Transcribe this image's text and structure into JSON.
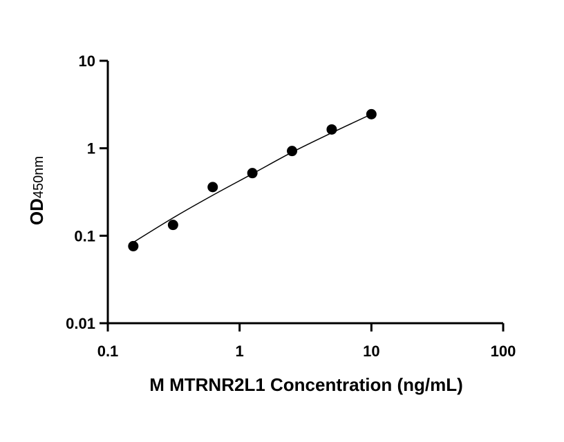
{
  "chart_data": {
    "type": "scatter",
    "title": "",
    "xlabel": "M MTRNR2L1 Concentration (ng/mL)",
    "ylabel": {
      "main": "OD",
      "subscript": "450nm"
    },
    "x_scale": "log",
    "y_scale": "log",
    "xlim": [
      0.1,
      100
    ],
    "ylim": [
      0.01,
      10
    ],
    "x_ticks": [
      0.1,
      1,
      10,
      100
    ],
    "x_tick_labels": [
      "0.1",
      "1",
      "10",
      "100"
    ],
    "y_ticks": [
      0.01,
      0.1,
      1,
      10
    ],
    "y_tick_labels": [
      "0.01",
      "0.1",
      "1",
      "10"
    ],
    "grid": false,
    "series": [
      {
        "x": [
          0.156,
          0.3125,
          0.625,
          1.25,
          2.5,
          5,
          10
        ],
        "y": [
          0.076,
          0.133,
          0.36,
          0.52,
          0.93,
          1.64,
          2.45
        ]
      }
    ],
    "fit_curve": {
      "x": [
        0.156,
        0.3125,
        0.625,
        1.25,
        2.5,
        5,
        10
      ],
      "y": [
        0.084,
        0.16,
        0.29,
        0.51,
        0.9,
        1.5,
        2.45
      ]
    },
    "colors": {
      "points": "#000000",
      "line": "#000000",
      "axes": "#000000"
    }
  }
}
